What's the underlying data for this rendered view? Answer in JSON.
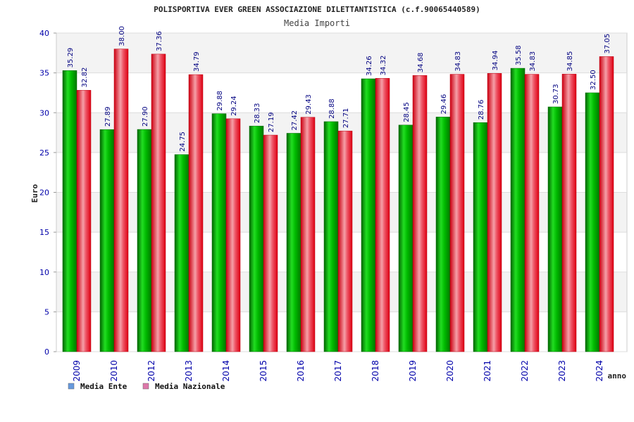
{
  "chart_data": {
    "type": "bar",
    "title": "POLISPORTIVA EVER GREEN ASSOCIAZIONE DILETTANTISTICA (c.f.90065440589)",
    "subtitle": "Media Importi",
    "xlabel": "anno",
    "ylabel": "Euro",
    "ylim": [
      0,
      40
    ],
    "yticks": [
      0,
      5,
      10,
      15,
      20,
      25,
      30,
      35,
      40
    ],
    "categories": [
      "2009",
      "2010",
      "2012",
      "2013",
      "2014",
      "2015",
      "2016",
      "2017",
      "2018",
      "2019",
      "2020",
      "2021",
      "2022",
      "2023",
      "2024"
    ],
    "series": [
      {
        "name": "Media Ente",
        "values": [
          35.29,
          27.89,
          27.9,
          24.75,
          29.88,
          28.33,
          27.42,
          28.88,
          34.26,
          28.45,
          29.46,
          28.76,
          35.58,
          30.73,
          32.5
        ],
        "labels": [
          "35.29",
          "27.89",
          "27.90",
          "24.75",
          "29.88",
          "28.33",
          "27.42",
          "28.88",
          "34.26",
          "28.45",
          "29.46",
          "28.76",
          "35.58",
          "30.73",
          "32.50"
        ],
        "color": "#00aa00",
        "legend_color": "#6699dd"
      },
      {
        "name": "Media Nazionale",
        "values": [
          32.82,
          38.0,
          37.36,
          34.79,
          29.24,
          27.19,
          29.43,
          27.71,
          34.32,
          34.68,
          34.83,
          34.94,
          34.83,
          34.85,
          37.05
        ],
        "labels": [
          "32.82",
          "38.00",
          "37.36",
          "34.79",
          "29.24",
          "27.19",
          "29.43",
          "27.71",
          "34.32",
          "34.68",
          "34.83",
          "34.94",
          "34.83",
          "34.85",
          "37.05"
        ],
        "color": "#ee2233",
        "legend_color": "#dd77aa"
      }
    ],
    "grid": true,
    "legend": "bottom-left"
  }
}
